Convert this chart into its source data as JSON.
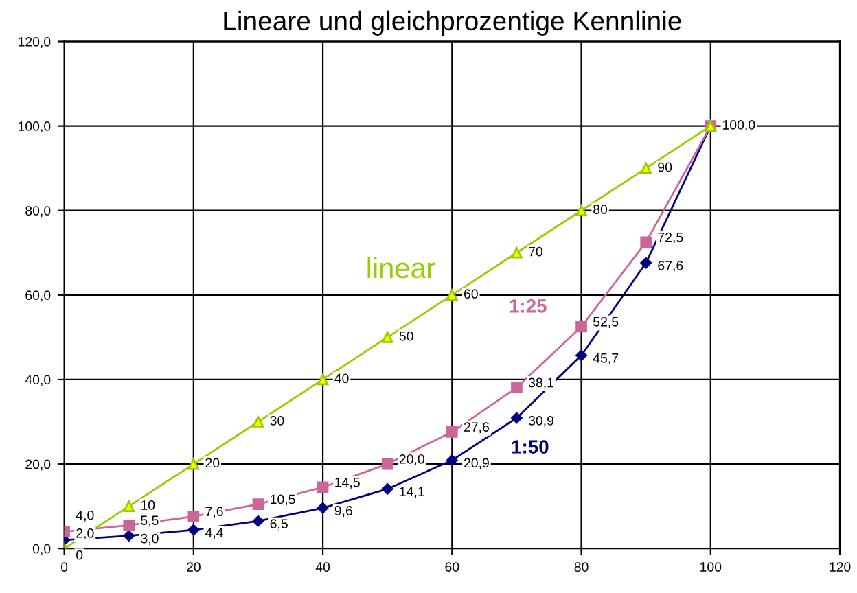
{
  "chart_data": {
    "type": "line",
    "title": "Lineare und gleichprozentige Kennlinie",
    "x": [
      0,
      10,
      20,
      30,
      40,
      50,
      60,
      70,
      80,
      90,
      100
    ],
    "series": [
      {
        "name": "1:50",
        "color": "#000080",
        "marker": "diamond",
        "values": [
          2.0,
          3.0,
          4.4,
          6.5,
          9.6,
          14.1,
          20.9,
          30.9,
          45.7,
          67.6,
          100.0
        ],
        "value_labels": [
          "2,0",
          "3,0",
          "4,4",
          "6,5",
          "9,6",
          "14,1",
          "20,9",
          "30,9",
          "45,7",
          "67,6",
          null
        ]
      },
      {
        "name": "1:25",
        "color": "#cc6699",
        "marker": "square",
        "values": [
          4.0,
          5.5,
          7.6,
          10.5,
          14.5,
          20.0,
          27.6,
          38.1,
          52.5,
          72.5,
          100.0
        ],
        "value_labels": [
          "4,0",
          "5,5",
          "7,6",
          "10,5",
          "14,5",
          "20,0",
          "27,6",
          "38,1",
          "52,5",
          "72,5",
          null
        ]
      },
      {
        "name": "linear",
        "color": "#99cc00",
        "marker": "triangle",
        "values": [
          0,
          10,
          20,
          30,
          40,
          50,
          60,
          70,
          80,
          90,
          100
        ],
        "value_labels": [
          "0",
          "10",
          "20",
          "30",
          "40",
          "50",
          "60",
          "70",
          "80",
          "90",
          "100,0"
        ]
      }
    ],
    "xlim": [
      0,
      120
    ],
    "xticks": [
      0,
      20,
      40,
      60,
      80,
      100,
      120
    ],
    "ylim": [
      0,
      120
    ],
    "yticks": [
      {
        "value": 0,
        "label": "0,0"
      },
      {
        "value": 20,
        "label": "20,0"
      },
      {
        "value": 40,
        "label": "40,0"
      },
      {
        "value": 60,
        "label": "60,0"
      },
      {
        "value": 80,
        "label": "80,0"
      },
      {
        "value": 100,
        "label": "100,0"
      },
      {
        "value": 120,
        "label": "120,0"
      }
    ],
    "grid": true,
    "legend": false,
    "line_style": "solid"
  }
}
